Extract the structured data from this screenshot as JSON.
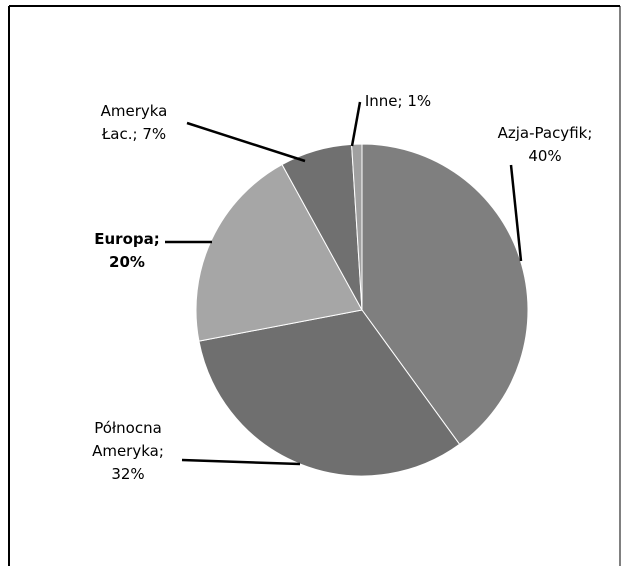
{
  "chart_data": {
    "type": "pie",
    "categories": [
      "Azja-Pacyfik",
      "Północna Ameryka",
      "Europa",
      "Ameryka Łac.",
      "Inne"
    ],
    "values": [
      40,
      32,
      20,
      7,
      1
    ],
    "unit": "%",
    "start_angle_deg": 0,
    "direction": "clockwise",
    "slice_colors": [
      "#7f7f7f",
      "#6f6f6f",
      "#a6a6a6",
      "#707070",
      "#a0a0a0"
    ],
    "label_text": [
      [
        "Azja-Pacyfik;",
        "40%"
      ],
      [
        "Północna",
        "Ameryka;",
        "32%"
      ],
      [
        "Europa;",
        "20%"
      ],
      [
        "Ameryka",
        "Łac.; 7%"
      ],
      [
        "Inne; 1%"
      ]
    ],
    "label_bold": [
      false,
      false,
      true,
      false,
      false
    ],
    "legend": "none"
  }
}
